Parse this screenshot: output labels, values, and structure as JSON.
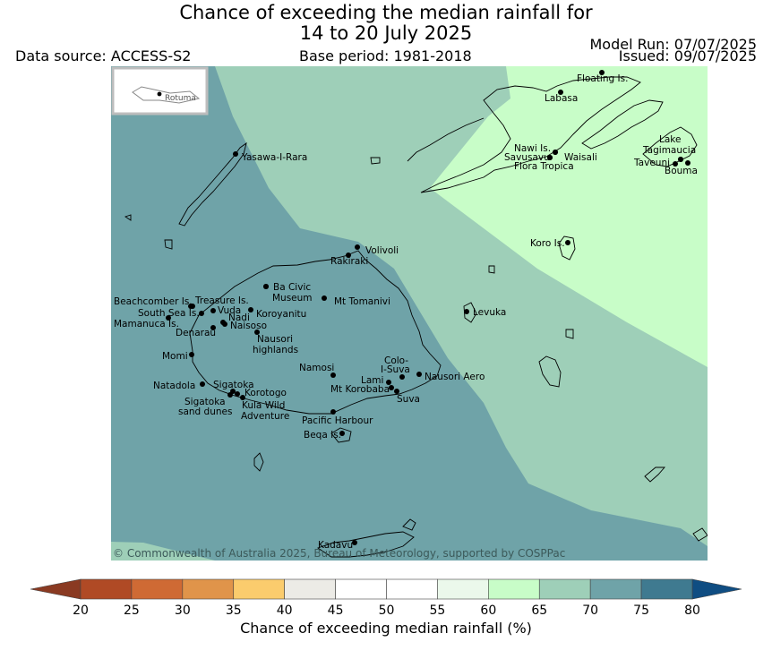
{
  "title_line1": "Chance of exceeding the median rainfall for",
  "title_line2": "14 to 20 July 2025",
  "data_source": "Data source: ACCESS-S2",
  "base_period": "Base period: 1981-2018",
  "model_run": "Model Run: 07/07/2025",
  "issued": "Issued: 09/07/2025",
  "inset_label": "Rotuma",
  "copyright": "© Commonwealth of Australia 2025, Bureau of Meteorology, supported by COSPPac",
  "colorbar": {
    "title": "Chance of exceeding median rainfall (%)",
    "ticks": [
      "20",
      "25",
      "30",
      "35",
      "40",
      "45",
      "50",
      "55",
      "60",
      "65",
      "70",
      "75",
      "80"
    ],
    "colors": [
      "#b04a25",
      "#cf6a34",
      "#e0944a",
      "#fbcc6d",
      "#ecebe6",
      "#ffffff",
      "#ffffff",
      "#ebf8eb",
      "#c8fdc8",
      "#9ecfb8",
      "#6fa3a8",
      "#3f7a90"
    ],
    "under_color": "#8a3a22",
    "over_color": "#0f4d82"
  },
  "map": {
    "zone_colors": {
      "p60_65": "#c8fdc8",
      "p65_70": "#9ecfb8",
      "p70_75": "#6fa3a8"
    },
    "places": [
      {
        "name": "Floating Is."
      },
      {
        "name": "Labasa"
      },
      {
        "name": "Nawi Is."
      },
      {
        "name": "Savusavu"
      },
      {
        "name": "Waisali"
      },
      {
        "name": "Flora Tropica"
      },
      {
        "name": "Lake"
      },
      {
        "name": "Tagimaucia"
      },
      {
        "name": "Taveuni"
      },
      {
        "name": "Bouma"
      },
      {
        "name": "Yasawa-I-Rara"
      },
      {
        "name": "Koro Is."
      },
      {
        "name": "Volivoli"
      },
      {
        "name": "Rakiraki"
      },
      {
        "name": "Ba Civic"
      },
      {
        "name": "Museum"
      },
      {
        "name": "Mt Tomanivi"
      },
      {
        "name": "Levuka"
      },
      {
        "name": "Beachcomber Is."
      },
      {
        "name": "Treasure Is."
      },
      {
        "name": "South Sea Is."
      },
      {
        "name": "Vuda"
      },
      {
        "name": "Koroyanitu"
      },
      {
        "name": "Mamanuca Is."
      },
      {
        "name": "Nadi"
      },
      {
        "name": "Denarau"
      },
      {
        "name": "Naisoso"
      },
      {
        "name": "Nausori"
      },
      {
        "name": "highlands"
      },
      {
        "name": "Momi"
      },
      {
        "name": "Namosi"
      },
      {
        "name": "Colo-"
      },
      {
        "name": "I-Suva"
      },
      {
        "name": "Nausori Aero"
      },
      {
        "name": "Lami"
      },
      {
        "name": "Mt Korobaba"
      },
      {
        "name": "Suva"
      },
      {
        "name": "Natadola"
      },
      {
        "name": "Sigatoka"
      },
      {
        "name": "Korotogo"
      },
      {
        "name": "Sigatoka"
      },
      {
        "name": "sand dunes"
      },
      {
        "name": "Kula Wild"
      },
      {
        "name": "Adventure"
      },
      {
        "name": "Pacific Harbour"
      },
      {
        "name": "Beqa Is."
      },
      {
        "name": "Kadavu"
      }
    ]
  }
}
